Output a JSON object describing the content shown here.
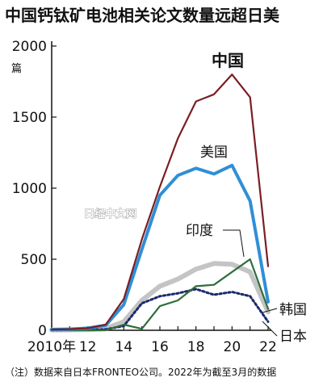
{
  "chart_data": {
    "type": "line",
    "title": "中国钙钛矿电池相关论文数量远超日美",
    "unit_label": "篇",
    "x": [
      2010,
      2011,
      2012,
      2013,
      2014,
      2015,
      2016,
      2017,
      2018,
      2019,
      2020,
      2021,
      2022
    ],
    "x_tick_labels": [
      "2010年",
      "12",
      "14",
      "16",
      "18",
      "20",
      "22"
    ],
    "x_tick_values": [
      2010,
      2012,
      2014,
      2016,
      2018,
      2020,
      2022
    ],
    "ylim": [
      0,
      2000
    ],
    "y_ticks": [
      0,
      500,
      1000,
      1500,
      2000
    ],
    "y_tick_labels": [
      "0",
      "500",
      "1000",
      "1500",
      "2000"
    ],
    "grid": false,
    "series": [
      {
        "name": "中国",
        "color": "#7a1e24",
        "values": [
          5,
          8,
          15,
          40,
          220,
          640,
          1010,
          1350,
          1610,
          1660,
          1800,
          1640,
          450
        ]
      },
      {
        "name": "美国",
        "color": "#2f8fd6",
        "values": [
          5,
          8,
          15,
          35,
          180,
          570,
          950,
          1090,
          1140,
          1100,
          1160,
          910,
          200
        ]
      },
      {
        "name": "韩国",
        "color": "#c4c4c4",
        "values": [
          2,
          3,
          5,
          12,
          60,
          210,
          310,
          360,
          430,
          470,
          465,
          410,
          130
        ]
      },
      {
        "name": "印度",
        "color": "#2f6e3a",
        "values": [
          0,
          0,
          0,
          0,
          40,
          10,
          170,
          210,
          310,
          320,
          410,
          500,
          150
        ]
      },
      {
        "name": "日本",
        "color": "#1a2a6b",
        "values": [
          1,
          2,
          3,
          6,
          30,
          190,
          240,
          260,
          290,
          250,
          270,
          240,
          60
        ]
      }
    ],
    "watermark": "日经中文网",
    "note": "（注）数据来自日本FRONTEO公司。2022年为截至3月的数据"
  }
}
